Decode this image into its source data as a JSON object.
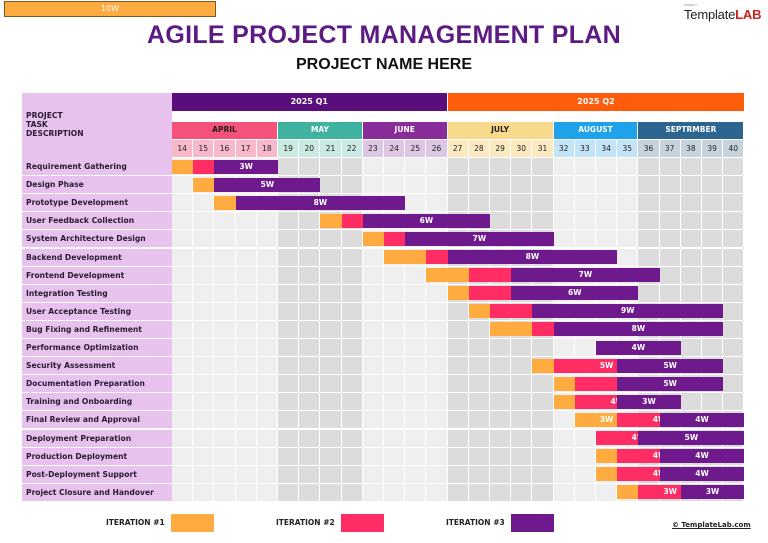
{
  "top_box": "10W",
  "logo": {
    "small": "PROJECT",
    "part1": "Template",
    "part2": "LAB"
  },
  "title": "AGILE PROJECT MANAGEMENT PLAN",
  "subtitle": "PROJECT NAME HERE",
  "header_label": "PROJECT\nTASK\nDESCRIPTION",
  "colors": {
    "iter1": "#ffab40",
    "iter2": "#ff2d63",
    "iter3": "#6e1a8c",
    "label_bg": "#e6c2ec",
    "q1": "#5a0e7c",
    "q2": "#ff5c0c"
  },
  "quarters": [
    {
      "label": "2025 Q1",
      "start": 0,
      "span": 13,
      "color": "#5a0e7c"
    },
    {
      "label": "2025 Q2",
      "start": 13,
      "span": 14,
      "color": "#ff5c0c"
    }
  ],
  "months": [
    {
      "label": "APRIL",
      "start": 0,
      "span": 5,
      "bg": "#f5527b",
      "fg": "#222222",
      "wkbg": "#f7b9c9"
    },
    {
      "label": "MAY",
      "start": 5,
      "span": 4,
      "bg": "#3fb2a0",
      "fg": "#ffffff",
      "wkbg": "#c9e9e2"
    },
    {
      "label": "JUNE",
      "start": 9,
      "span": 4,
      "bg": "#8a2d9a",
      "fg": "#ffffff",
      "wkbg": "#dcc6e3"
    },
    {
      "label": "JULY",
      "start": 13,
      "span": 5,
      "bg": "#f9d98c",
      "fg": "#222222",
      "wkbg": "#fbe9c0"
    },
    {
      "label": "AUGUST",
      "start": 18,
      "span": 4,
      "bg": "#1ea3ea",
      "fg": "#ffffff",
      "wkbg": "#c3e3f7"
    },
    {
      "label": "SEPTRMBER",
      "start": 22,
      "span": 5,
      "bg": "#2c6590",
      "fg": "#ffffff",
      "wkbg": "#c6d3dd"
    }
  ],
  "weeks": [
    "14",
    "15",
    "16",
    "17",
    "18",
    "19",
    "20",
    "21",
    "22",
    "23",
    "24",
    "25",
    "26",
    "27",
    "28",
    "29",
    "30",
    "31",
    "32",
    "33",
    "34",
    "35",
    "36",
    "37",
    "38",
    "39",
    "40"
  ],
  "tasks": [
    {
      "name": "Requirement Gathering",
      "bars": [
        {
          "s": 0,
          "d": 1,
          "t": 1
        },
        {
          "s": 1,
          "d": 1,
          "t": 2
        },
        {
          "s": 2,
          "d": 3,
          "t": 3,
          "label": "3W"
        }
      ]
    },
    {
      "name": "Design Phase",
      "bars": [
        {
          "s": 1,
          "d": 1,
          "t": 1
        },
        {
          "s": 2,
          "d": 5,
          "t": 3,
          "label": "5W"
        }
      ]
    },
    {
      "name": "Prototype Development",
      "bars": [
        {
          "s": 2,
          "d": 1,
          "t": 1
        },
        {
          "s": 3,
          "d": 8,
          "t": 3,
          "label": "8W"
        }
      ]
    },
    {
      "name": "User Feedback Collection",
      "bars": [
        {
          "s": 7,
          "d": 1,
          "t": 1
        },
        {
          "s": 8,
          "d": 1,
          "t": 2
        },
        {
          "s": 9,
          "d": 6,
          "t": 3,
          "label": "6W"
        }
      ]
    },
    {
      "name": "System Architecture Design",
      "bars": [
        {
          "s": 9,
          "d": 1,
          "t": 1
        },
        {
          "s": 10,
          "d": 1,
          "t": 2
        },
        {
          "s": 11,
          "d": 7,
          "t": 3,
          "label": "7W"
        }
      ]
    },
    {
      "name": "Backend Development",
      "bars": [
        {
          "s": 10,
          "d": 2,
          "t": 1
        },
        {
          "s": 12,
          "d": 1,
          "t": 2
        },
        {
          "s": 13,
          "d": 8,
          "t": 3,
          "label": "8W"
        }
      ]
    },
    {
      "name": "Frontend Development",
      "bars": [
        {
          "s": 12,
          "d": 2,
          "t": 1
        },
        {
          "s": 14,
          "d": 2,
          "t": 2
        },
        {
          "s": 16,
          "d": 7,
          "t": 3,
          "label": "7W"
        }
      ]
    },
    {
      "name": "Integration Testing",
      "bars": [
        {
          "s": 13,
          "d": 1,
          "t": 1
        },
        {
          "s": 14,
          "d": 2,
          "t": 2
        },
        {
          "s": 16,
          "d": 6,
          "t": 3,
          "label": "6W"
        }
      ]
    },
    {
      "name": "User Acceptance Testing",
      "bars": [
        {
          "s": 14,
          "d": 1,
          "t": 1
        },
        {
          "s": 15,
          "d": 2,
          "t": 2
        },
        {
          "s": 17,
          "d": 9,
          "t": 3,
          "label": "9W"
        }
      ]
    },
    {
      "name": "Bug Fixing and Refinement",
      "bars": [
        {
          "s": 15,
          "d": 2,
          "t": 1
        },
        {
          "s": 17,
          "d": 1,
          "t": 2
        },
        {
          "s": 18,
          "d": 8,
          "t": 3,
          "label": "8W"
        }
      ]
    },
    {
      "name": "Performance Optimization",
      "bars": [
        {
          "s": 20,
          "d": 4,
          "t": 3,
          "label": "4W"
        }
      ]
    },
    {
      "name": "Security Assessment",
      "bars": [
        {
          "s": 17,
          "d": 1,
          "t": 1
        },
        {
          "s": 18,
          "d": 5,
          "t": 2,
          "label": "5W"
        },
        {
          "s": 21,
          "d": 5,
          "t": 3,
          "label": "5W"
        }
      ]
    },
    {
      "name": "Documentation Preparation",
      "bars": [
        {
          "s": 18,
          "d": 1,
          "t": 1
        },
        {
          "s": 19,
          "d": 2,
          "t": 2
        },
        {
          "s": 21,
          "d": 5,
          "t": 3,
          "label": "5W"
        }
      ]
    },
    {
      "name": "Training and Onboarding",
      "bars": [
        {
          "s": 18,
          "d": 1,
          "t": 1
        },
        {
          "s": 19,
          "d": 4,
          "t": 2,
          "label": "4W"
        },
        {
          "s": 21,
          "d": 3,
          "t": 3,
          "label": "3W"
        }
      ]
    },
    {
      "name": "Final Review and Approval",
      "bars": [
        {
          "s": 19,
          "d": 3,
          "t": 1,
          "label": "3W"
        },
        {
          "s": 21,
          "d": 4,
          "t": 2,
          "label": "4W"
        },
        {
          "s": 23,
          "d": 4,
          "t": 3,
          "label": "4W"
        }
      ]
    },
    {
      "name": "Deployment Preparation",
      "bars": [
        {
          "s": 20,
          "d": 4,
          "t": 2,
          "label": "4W"
        },
        {
          "s": 22,
          "d": 5,
          "t": 3,
          "label": "5W"
        }
      ]
    },
    {
      "name": "Production Deployment",
      "bars": [
        {
          "s": 20,
          "d": 1,
          "t": 1
        },
        {
          "s": 21,
          "d": 4,
          "t": 2,
          "label": "4W"
        },
        {
          "s": 23,
          "d": 4,
          "t": 3,
          "label": "4W"
        }
      ]
    },
    {
      "name": "Post-Deployment Support",
      "bars": [
        {
          "s": 20,
          "d": 1,
          "t": 1
        },
        {
          "s": 21,
          "d": 4,
          "t": 2,
          "label": "4W"
        },
        {
          "s": 23,
          "d": 4,
          "t": 3,
          "label": "4W"
        }
      ]
    },
    {
      "name": "Project Closure and Handover",
      "bars": [
        {
          "s": 21,
          "d": 1,
          "t": 1
        },
        {
          "s": 22,
          "d": 3,
          "t": 2,
          "label": "3W"
        },
        {
          "s": 24,
          "d": 3,
          "t": 3,
          "label": "3W"
        }
      ]
    }
  ],
  "legend": [
    {
      "label": "ITERATION #1",
      "color": "#ffab40"
    },
    {
      "label": "ITERATION #2",
      "color": "#ff2d63"
    },
    {
      "label": "ITERATION #3",
      "color": "#6e1a8c"
    }
  ],
  "credit": "© TemplateLab.com"
}
